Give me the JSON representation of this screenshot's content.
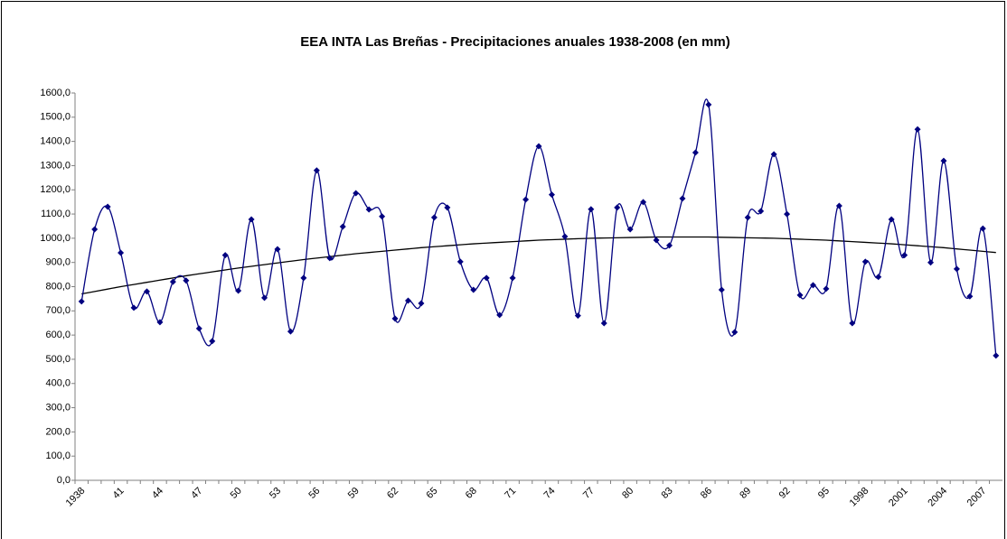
{
  "chart_data": {
    "type": "line",
    "title": "EEA INTA Las Breñas - Precipitaciones anuales 1938-2008 (en mm)",
    "categories": [
      "1938",
      null,
      null,
      "41",
      null,
      null,
      "44",
      null,
      null,
      "47",
      null,
      null,
      "50",
      null,
      null,
      "53",
      null,
      null,
      "56",
      null,
      null,
      "59",
      null,
      null,
      "62",
      null,
      null,
      "65",
      null,
      null,
      "68",
      null,
      null,
      "71",
      null,
      null,
      "74",
      null,
      null,
      "77",
      null,
      null,
      "80",
      null,
      null,
      "83",
      null,
      null,
      "86",
      null,
      null,
      "89",
      null,
      null,
      "92",
      null,
      null,
      "95",
      null,
      null,
      "1998",
      null,
      null,
      "2001",
      null,
      null,
      "2004",
      null,
      null,
      "2007",
      null
    ],
    "series": [
      {
        "color": "#000080",
        "values": [
          739,
          1037,
          1130,
          940,
          713,
          780,
          653,
          820,
          825,
          627,
          575,
          930,
          783,
          1078,
          754,
          955,
          615,
          836,
          1280,
          918,
          1048,
          1186,
          1119,
          1090,
          668,
          742,
          731,
          1086,
          1127,
          903,
          787,
          836,
          683,
          836,
          1160,
          1380,
          1180,
          1007,
          680,
          1120,
          649,
          1127,
          1037,
          1149,
          992,
          970,
          1164,
          1354,
          1552,
          787,
          612,
          1086,
          1112,
          1347,
          1100,
          765,
          806,
          791,
          1134,
          649,
          903,
          840,
          1078,
          930,
          1450,
          900,
          1320,
          873,
          760,
          1040,
          515
        ]
      }
    ],
    "trendline": {
      "color": "#000000",
      "values": [
        770,
        780,
        790,
        800,
        809,
        818,
        827,
        836,
        845,
        853,
        861,
        869,
        877,
        884,
        891,
        898,
        905,
        912,
        918,
        924,
        930,
        936,
        941,
        946,
        951,
        956,
        961,
        965,
        969,
        973,
        977,
        980,
        983,
        986,
        989,
        992,
        994,
        996,
        998,
        1000,
        1001,
        1002,
        1003,
        1004,
        1005,
        1005,
        1005,
        1005,
        1005,
        1004,
        1003,
        1002,
        1001,
        1000,
        998,
        996,
        994,
        992,
        989,
        986,
        983,
        980,
        977,
        973,
        969,
        965,
        961,
        956,
        951,
        946,
        941
      ]
    },
    "ylim": [
      0,
      1600
    ],
    "yticks": [
      {
        "value": 0,
        "label": "0,0"
      },
      {
        "value": 100,
        "label": "100,0"
      },
      {
        "value": 200,
        "label": "200,0"
      },
      {
        "value": 300,
        "label": "300,0"
      },
      {
        "value": 400,
        "label": "400,0"
      },
      {
        "value": 500,
        "label": "500,0"
      },
      {
        "value": 600,
        "label": "600,0"
      },
      {
        "value": 700,
        "label": "700,0"
      },
      {
        "value": 800,
        "label": "800,0"
      },
      {
        "value": 900,
        "label": "900,0"
      },
      {
        "value": 1000,
        "label": "1000,0"
      },
      {
        "value": 1100,
        "label": "1100,0"
      },
      {
        "value": 1200,
        "label": "1200,0"
      },
      {
        "value": 1300,
        "label": "1300,0"
      },
      {
        "value": 1400,
        "label": "1400,0"
      },
      {
        "value": 1500,
        "label": "1500,0"
      },
      {
        "value": 1600,
        "label": "1600,0"
      }
    ],
    "grid": false
  }
}
